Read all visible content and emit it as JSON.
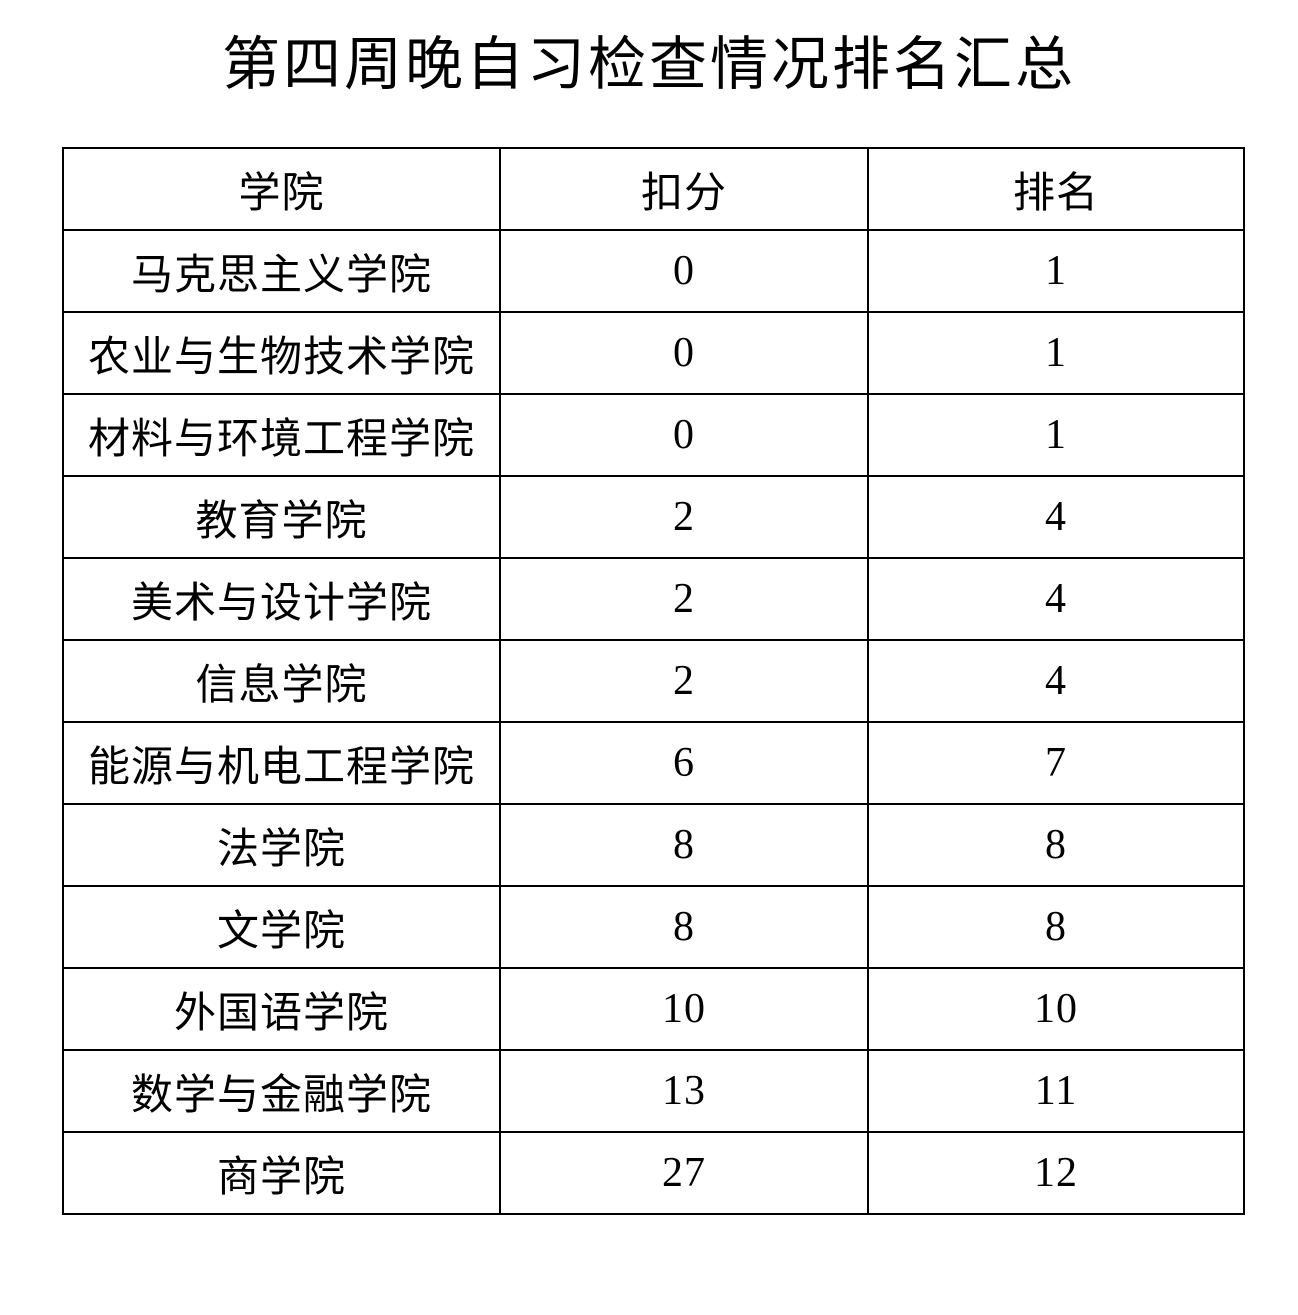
{
  "title": "第四周晚自习检查情况排名汇总",
  "table": {
    "headers": [
      "学院",
      "扣分",
      "排名"
    ],
    "rows": [
      [
        "马克思主义学院",
        "0",
        "1"
      ],
      [
        "农业与生物技术学院",
        "0",
        "1"
      ],
      [
        "材料与环境工程学院",
        "0",
        "1"
      ],
      [
        "教育学院",
        "2",
        "4"
      ],
      [
        "美术与设计学院",
        "2",
        "4"
      ],
      [
        "信息学院",
        "2",
        "4"
      ],
      [
        "能源与机电工程学院",
        "6",
        "7"
      ],
      [
        "法学院",
        "8",
        "8"
      ],
      [
        "文学院",
        "8",
        "8"
      ],
      [
        "外国语学院",
        "10",
        "10"
      ],
      [
        "数学与金融学院",
        "13",
        "11"
      ],
      [
        "商学院",
        "27",
        "12"
      ]
    ]
  },
  "colors": {
    "text": "#000000",
    "border": "#000000",
    "background": "#ffffff"
  }
}
